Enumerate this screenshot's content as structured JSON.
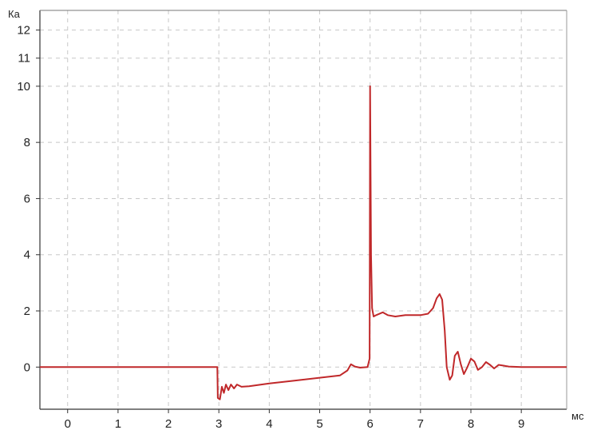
{
  "chart_data": {
    "type": "line",
    "title": "",
    "xlabel": "мс",
    "ylabel": "Ка",
    "xlim": [
      -0.55,
      9.9
    ],
    "ylim": [
      -1.5,
      12.7
    ],
    "x_ticks": [
      0,
      1,
      2,
      3,
      4,
      5,
      6,
      7,
      8,
      9
    ],
    "y_ticks": [
      0,
      2,
      4,
      6,
      8,
      10,
      11,
      12
    ],
    "grid": true,
    "line_color": "#c0282a",
    "series": [
      {
        "points": [
          [
            -0.55,
            0
          ],
          [
            2.97,
            0
          ],
          [
            2.98,
            -1.1
          ],
          [
            3.02,
            -1.15
          ],
          [
            3.06,
            -0.7
          ],
          [
            3.1,
            -0.92
          ],
          [
            3.14,
            -0.62
          ],
          [
            3.19,
            -0.82
          ],
          [
            3.24,
            -0.62
          ],
          [
            3.3,
            -0.76
          ],
          [
            3.36,
            -0.62
          ],
          [
            3.45,
            -0.7
          ],
          [
            3.6,
            -0.68
          ],
          [
            4.0,
            -0.58
          ],
          [
            4.5,
            -0.48
          ],
          [
            5.0,
            -0.38
          ],
          [
            5.4,
            -0.3
          ],
          [
            5.55,
            -0.12
          ],
          [
            5.62,
            0.1
          ],
          [
            5.7,
            0.02
          ],
          [
            5.8,
            -0.02
          ],
          [
            5.95,
            0.0
          ],
          [
            5.99,
            0.3
          ],
          [
            6.0,
            10.0
          ],
          [
            6.02,
            4.0
          ],
          [
            6.04,
            2.1
          ],
          [
            6.07,
            1.8
          ],
          [
            6.12,
            1.85
          ],
          [
            6.25,
            1.95
          ],
          [
            6.35,
            1.85
          ],
          [
            6.5,
            1.8
          ],
          [
            6.7,
            1.85
          ],
          [
            7.0,
            1.85
          ],
          [
            7.15,
            1.9
          ],
          [
            7.25,
            2.1
          ],
          [
            7.32,
            2.45
          ],
          [
            7.38,
            2.6
          ],
          [
            7.43,
            2.4
          ],
          [
            7.48,
            1.3
          ],
          [
            7.52,
            0.0
          ],
          [
            7.58,
            -0.45
          ],
          [
            7.63,
            -0.3
          ],
          [
            7.68,
            0.4
          ],
          [
            7.74,
            0.55
          ],
          [
            7.8,
            0.1
          ],
          [
            7.86,
            -0.25
          ],
          [
            7.93,
            0.0
          ],
          [
            8.0,
            0.3
          ],
          [
            8.07,
            0.2
          ],
          [
            8.14,
            -0.1
          ],
          [
            8.22,
            0.0
          ],
          [
            8.3,
            0.18
          ],
          [
            8.38,
            0.08
          ],
          [
            8.46,
            -0.05
          ],
          [
            8.55,
            0.08
          ],
          [
            8.65,
            0.05
          ],
          [
            8.75,
            0.02
          ],
          [
            9.0,
            0.0
          ],
          [
            9.9,
            0.0
          ]
        ]
      }
    ]
  }
}
